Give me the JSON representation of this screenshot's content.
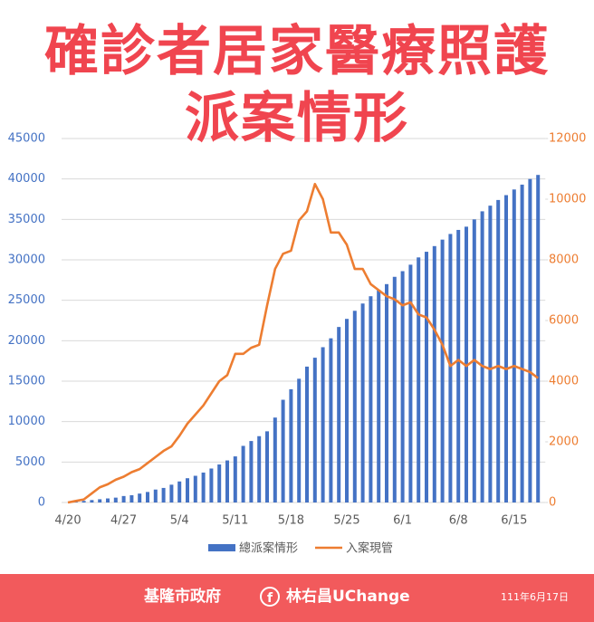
{
  "chart_data": {
    "type": "bar-line",
    "title": "確診者居家醫療照護派案情形",
    "categories": [
      "4/20",
      null,
      null,
      null,
      null,
      null,
      null,
      "4/27",
      null,
      null,
      null,
      null,
      null,
      null,
      "5/4",
      null,
      null,
      null,
      null,
      null,
      null,
      "5/11",
      null,
      null,
      null,
      null,
      null,
      null,
      "5/18",
      null,
      null,
      null,
      null,
      null,
      null,
      "5/25",
      null,
      null,
      null,
      null,
      null,
      null,
      "6/1",
      null,
      null,
      null,
      null,
      null,
      null,
      "6/8",
      null,
      null,
      null,
      null,
      null,
      null,
      "6/15",
      null,
      null,
      null
    ],
    "series": [
      {
        "name": "總派案情形",
        "type": "bar",
        "color": "#4472c4",
        "values": [
          0,
          100,
          200,
          300,
          400,
          500,
          600,
          800,
          900,
          1100,
          1300,
          1600,
          1800,
          2200,
          2600,
          3000,
          3300,
          3700,
          4200,
          4700,
          5200,
          5700,
          7000,
          7600,
          8200,
          8800,
          10500,
          12700,
          14000,
          15300,
          16800,
          17900,
          19200,
          20300,
          21700,
          22700,
          23700,
          24600,
          25500,
          26300,
          27000,
          27900,
          28600,
          29400,
          30300,
          31000,
          31700,
          32500,
          33200,
          33700,
          34100,
          35000,
          36000,
          36700,
          37400,
          38000,
          38700,
          39300,
          40000,
          40500
        ]
      },
      {
        "name": "入案現管",
        "type": "line",
        "axis": "y2",
        "color": "#ed7d31",
        "values": [
          0,
          50,
          100,
          300,
          500,
          600,
          750,
          850,
          1000,
          1100,
          1300,
          1500,
          1700,
          1850,
          2200,
          2600,
          2900,
          3200,
          3600,
          4000,
          4200,
          4900,
          4900,
          5100,
          5200,
          6500,
          7700,
          8200,
          8300,
          9300,
          9600,
          10500,
          10000,
          8900,
          8900,
          8500,
          7700,
          7700,
          7200,
          7000,
          6800,
          6700,
          6500,
          6600,
          6200,
          6100,
          5700,
          5200,
          4500,
          4700,
          4500,
          4700,
          4500,
          4400,
          4500,
          4400,
          4500,
          4400,
          4300,
          4100
        ]
      }
    ],
    "ylim": [
      0,
      45000
    ],
    "yticks": [
      0,
      5000,
      10000,
      15000,
      20000,
      25000,
      30000,
      35000,
      40000,
      45000
    ],
    "y2lim": [
      0,
      12000
    ],
    "y2ticks": [
      0,
      2000,
      4000,
      6000,
      8000,
      10000,
      12000
    ],
    "grid": true,
    "legend": "bottom"
  },
  "footer": {
    "org": "基隆市政府",
    "page": "林右昌UChange",
    "date": "111年6月17日"
  }
}
